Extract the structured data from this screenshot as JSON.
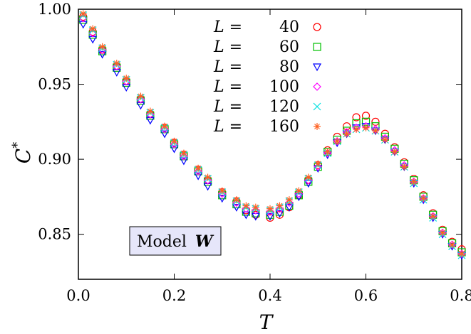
{
  "chart_data": {
    "type": "scatter",
    "xlabel": "T",
    "ylabel": "C",
    "ylabel_superscript": "*",
    "xlim": [
      0.0,
      0.8
    ],
    "ylim": [
      0.82,
      1.0
    ],
    "xticks": [
      0.0,
      0.2,
      0.4,
      0.6,
      0.8
    ],
    "xtick_labels": [
      "0.0",
      "0.2",
      "0.4",
      "0.6",
      "0.8"
    ],
    "yticks": [
      0.85,
      0.9,
      0.95,
      1.0
    ],
    "ytick_labels": [
      "0.85",
      "0.90",
      "0.95",
      "1.00"
    ],
    "grid": false,
    "legend_position": "top-center",
    "annotation": {
      "text": "Model",
      "italic_text": "W",
      "background": "#e6e6fa"
    },
    "x": [
      0.01,
      0.03,
      0.05,
      0.08,
      0.1,
      0.13,
      0.15,
      0.18,
      0.2,
      0.22,
      0.25,
      0.27,
      0.3,
      0.33,
      0.35,
      0.37,
      0.4,
      0.42,
      0.44,
      0.46,
      0.48,
      0.5,
      0.52,
      0.54,
      0.56,
      0.58,
      0.6,
      0.62,
      0.64,
      0.66,
      0.68,
      0.7,
      0.72,
      0.74,
      0.76,
      0.78,
      0.8
    ],
    "series": [
      {
        "name": "40",
        "marker": "circle",
        "color": "#ff0000",
        "values": [
          0.995,
          0.985,
          0.973,
          0.962,
          0.952,
          0.94,
          0.93,
          0.921,
          0.911,
          0.903,
          0.893,
          0.886,
          0.878,
          0.872,
          0.866,
          0.863,
          0.861,
          0.863,
          0.868,
          0.876,
          0.886,
          0.896,
          0.906,
          0.915,
          0.922,
          0.928,
          0.929,
          0.925,
          0.917,
          0.908,
          0.898,
          0.887,
          0.876,
          0.864,
          0.853,
          0.845,
          0.84
        ]
      },
      {
        "name": "60",
        "marker": "square",
        "color": "#00c000",
        "values": [
          0.993,
          0.983,
          0.972,
          0.961,
          0.951,
          0.939,
          0.929,
          0.92,
          0.91,
          0.902,
          0.892,
          0.885,
          0.876,
          0.87,
          0.865,
          0.864,
          0.863,
          0.865,
          0.869,
          0.876,
          0.885,
          0.895,
          0.905,
          0.913,
          0.919,
          0.924,
          0.925,
          0.922,
          0.915,
          0.907,
          0.897,
          0.886,
          0.875,
          0.863,
          0.852,
          0.844,
          0.838
        ]
      },
      {
        "name": "80",
        "marker": "triangle-down",
        "color": "#0000ff",
        "values": [
          0.99,
          0.98,
          0.97,
          0.958,
          0.948,
          0.936,
          0.926,
          0.917,
          0.907,
          0.899,
          0.889,
          0.882,
          0.874,
          0.868,
          0.863,
          0.862,
          0.862,
          0.864,
          0.868,
          0.875,
          0.884,
          0.894,
          0.903,
          0.911,
          0.917,
          0.921,
          0.922,
          0.919,
          0.913,
          0.905,
          0.895,
          0.884,
          0.873,
          0.861,
          0.85,
          0.842,
          0.836
        ]
      },
      {
        "name": "100",
        "marker": "diamond",
        "color": "#ff00ff",
        "values": [
          0.994,
          0.984,
          0.973,
          0.962,
          0.952,
          0.94,
          0.93,
          0.92,
          0.91,
          0.902,
          0.892,
          0.886,
          0.877,
          0.871,
          0.867,
          0.866,
          0.865,
          0.867,
          0.871,
          0.877,
          0.886,
          0.895,
          0.904,
          0.912,
          0.918,
          0.921,
          0.922,
          0.92,
          0.914,
          0.906,
          0.896,
          0.885,
          0.874,
          0.862,
          0.851,
          0.843,
          0.837
        ]
      },
      {
        "name": "120",
        "marker": "cross",
        "color": "#00e0e0",
        "values": [
          0.996,
          0.986,
          0.974,
          0.963,
          0.953,
          0.941,
          0.931,
          0.921,
          0.911,
          0.903,
          0.893,
          0.887,
          0.878,
          0.872,
          0.868,
          0.867,
          0.866,
          0.868,
          0.872,
          0.878,
          0.887,
          0.896,
          0.904,
          0.912,
          0.917,
          0.92,
          0.921,
          0.919,
          0.913,
          0.905,
          0.895,
          0.884,
          0.873,
          0.861,
          0.85,
          0.842,
          0.836
        ]
      },
      {
        "name": "160",
        "marker": "asterisk",
        "color": "#ff6020",
        "values": [
          0.997,
          0.987,
          0.975,
          0.964,
          0.954,
          0.942,
          0.932,
          0.922,
          0.912,
          0.904,
          0.894,
          0.888,
          0.879,
          0.873,
          0.869,
          0.868,
          0.867,
          0.869,
          0.873,
          0.879,
          0.888,
          0.897,
          0.905,
          0.912,
          0.917,
          0.92,
          0.921,
          0.919,
          0.913,
          0.905,
          0.895,
          0.885,
          0.874,
          0.862,
          0.851,
          0.843,
          0.837
        ]
      }
    ],
    "legend_prefix": "L ="
  }
}
